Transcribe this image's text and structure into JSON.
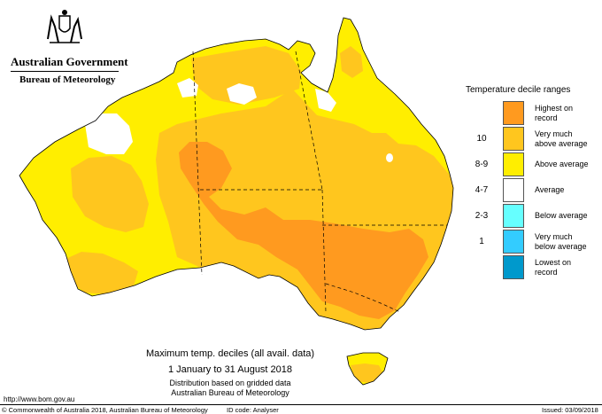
{
  "header": {
    "government": "Australian Government",
    "agency": "Bureau of Meteorology"
  },
  "caption": {
    "title": "Maximum temp. deciles (all avail. data)",
    "period": "1 January to 31 August 2018",
    "note1": "Distribution based on gridded data",
    "note2": "Australian Bureau of Meteorology"
  },
  "legend": {
    "title": "Temperature decile ranges",
    "items": [
      {
        "code": "",
        "line1": "Highest on",
        "line2": "record",
        "color": "#ff9a1f"
      },
      {
        "code": "10",
        "line1": "Very much",
        "line2": "above average",
        "color": "#ffc61e"
      },
      {
        "code": "8-9",
        "line1": "Above average",
        "line2": "",
        "color": "#ffee00"
      },
      {
        "code": "4-7",
        "line1": "Average",
        "line2": "",
        "color": "#ffffff"
      },
      {
        "code": "2-3",
        "line1": "Below average",
        "line2": "",
        "color": "#66ffff"
      },
      {
        "code": "1",
        "line1": "Very much",
        "line2": "below average",
        "color": "#33ccff"
      },
      {
        "code": "",
        "line1": "Lowest on",
        "line2": "record",
        "color": "#0099cc"
      }
    ]
  },
  "footer": {
    "url": "http://www.bom.gov.au",
    "copyright": "© Commonwealth of Australia 2018, Australian Bureau of Meteorology",
    "id_code": "ID code: Analyser",
    "issued": "Issued: 03/09/2018"
  },
  "map_colors": {
    "record": "#ff9a1f",
    "very_much_above": "#ffc61e",
    "above": "#ffee00",
    "average": "#ffffff"
  }
}
